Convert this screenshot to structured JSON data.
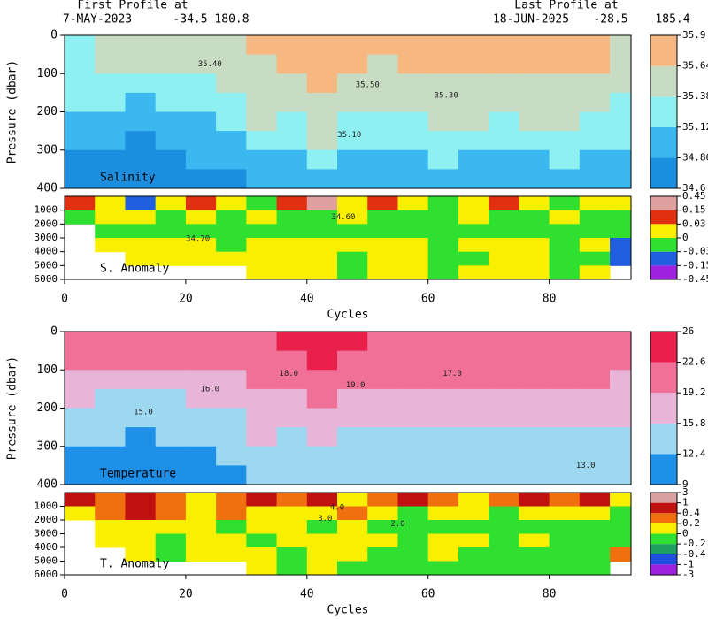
{
  "header": {
    "first_title": "First Profile at",
    "first_date": "7-MAY-2023",
    "first_lat": "-34.5",
    "first_lon": "180.8",
    "last_title": "Last Profile at",
    "last_date": "18-JUN-2025",
    "last_lat": "-28.5",
    "last_lon": "185.4"
  },
  "chart_data": [
    {
      "type": "heatmap",
      "label": "Salinity",
      "ylabel": "Pressure (dbar)",
      "xlim": [
        0,
        93.5
      ],
      "ylim": [
        0,
        400
      ],
      "yticks": [
        0,
        100,
        200,
        300,
        400
      ],
      "colorbar_scale": "linear",
      "colorbar_ticks": [
        34.6,
        34.86,
        35.12,
        35.38,
        35.64,
        35.9
      ],
      "colors": [
        "#1c8ee0",
        "#3cb8f0",
        "#8ef0f0",
        "#c8dcc4",
        "#f6b880"
      ],
      "x": [
        2.5,
        7.5,
        12.5,
        17.5,
        22.5,
        27.5,
        32.5,
        37.5,
        42.5,
        47.5,
        52.5,
        57.5,
        62.5,
        67.5,
        72.5,
        77.5,
        82.5,
        87.5,
        92.5
      ],
      "y": [
        25,
        75,
        125,
        175,
        225,
        275,
        325,
        375
      ],
      "values": [
        [
          35.3,
          35.45,
          35.5,
          35.5,
          35.5,
          35.5,
          35.7,
          35.7,
          35.7,
          35.75,
          35.7,
          35.7,
          35.7,
          35.75,
          35.7,
          35.75,
          35.75,
          35.7,
          35.6
        ],
        [
          35.3,
          35.4,
          35.4,
          35.45,
          35.45,
          35.45,
          35.6,
          35.65,
          35.7,
          35.7,
          35.6,
          35.65,
          35.65,
          35.7,
          35.7,
          35.7,
          35.7,
          35.65,
          35.5
        ],
        [
          35.25,
          35.3,
          35.2,
          35.3,
          35.35,
          35.4,
          35.5,
          35.55,
          35.65,
          35.55,
          35.5,
          35.55,
          35.6,
          35.6,
          35.55,
          35.6,
          35.6,
          35.55,
          35.4
        ],
        [
          35.15,
          35.15,
          35.1,
          35.15,
          35.2,
          35.3,
          35.45,
          35.45,
          35.6,
          35.45,
          35.4,
          35.45,
          35.5,
          35.5,
          35.45,
          35.5,
          35.5,
          35.45,
          35.35
        ],
        [
          35.05,
          35.0,
          34.95,
          35.0,
          35.1,
          35.2,
          35.4,
          35.35,
          35.5,
          35.35,
          35.3,
          35.35,
          35.4,
          35.4,
          35.35,
          35.4,
          35.4,
          35.35,
          35.3
        ],
        [
          34.95,
          34.9,
          34.85,
          34.9,
          35.0,
          35.05,
          35.25,
          35.2,
          35.4,
          35.2,
          35.2,
          35.2,
          35.3,
          35.25,
          35.2,
          35.25,
          35.3,
          35.2,
          35.2
        ],
        [
          34.85,
          34.8,
          34.75,
          34.8,
          34.9,
          34.95,
          35.1,
          35.05,
          35.25,
          35.05,
          35.05,
          35.1,
          35.15,
          35.1,
          35.05,
          35.1,
          35.15,
          35.1,
          35.1
        ],
        [
          34.75,
          34.7,
          34.7,
          34.72,
          34.8,
          34.85,
          34.95,
          34.95,
          35.1,
          34.95,
          34.95,
          35.0,
          35.05,
          35.0,
          34.95,
          35.0,
          35.05,
          35.0,
          35.0
        ]
      ],
      "contour_labels": [
        {
          "text": "35.40",
          "x": 24,
          "y": 75
        },
        {
          "text": "35.50",
          "x": 50,
          "y": 130
        },
        {
          "text": "35.30",
          "x": 63,
          "y": 157
        },
        {
          "text": "35.10",
          "x": 47,
          "y": 260
        }
      ]
    },
    {
      "type": "heatmap",
      "label": "S. Anomaly",
      "xlabel": "Cycles",
      "xlim": [
        0,
        93.5
      ],
      "xticks": [
        0,
        20,
        40,
        60,
        80
      ],
      "ylim": [
        0,
        6000
      ],
      "yticks": [
        1000,
        2000,
        3000,
        4000,
        5000,
        6000
      ],
      "colorbar_scale": "index",
      "colorbar_ticks": [
        -0.45,
        -0.15,
        -0.03,
        0,
        0.03,
        0.15,
        0.45
      ],
      "colors": [
        "#a020e0",
        "#2060e0",
        "#30e030",
        "#f8f000",
        "#e03010",
        "#e0a0a0"
      ],
      "x": [
        2.5,
        7.5,
        12.5,
        17.5,
        22.5,
        27.5,
        32.5,
        37.5,
        42.5,
        47.5,
        52.5,
        57.5,
        62.5,
        67.5,
        72.5,
        77.5,
        82.5,
        87.5,
        92.5
      ],
      "y": [
        500,
        1500,
        2500,
        3500,
        4500,
        5500
      ],
      "values": [
        [
          0.05,
          0.02,
          -0.05,
          0.02,
          0.1,
          0.02,
          -0.01,
          0.1,
          0.2,
          0.02,
          0.05,
          0.02,
          -0.01,
          0.02,
          0.05,
          0.02,
          -0.01,
          0.02,
          0.02
        ],
        [
          -0.01,
          0.02,
          0.02,
          -0.01,
          0.02,
          -0.01,
          0.02,
          -0.01,
          -0.01,
          0.02,
          -0.01,
          -0.01,
          -0.01,
          0.02,
          -0.01,
          -0.01,
          0.02,
          -0.01,
          -0.01
        ],
        [
          null,
          -0.01,
          -0.01,
          -0.01,
          -0.01,
          -0.01,
          -0.01,
          -0.01,
          -0.01,
          -0.01,
          -0.01,
          -0.01,
          -0.01,
          -0.01,
          -0.01,
          -0.01,
          -0.01,
          -0.01,
          -0.01
        ],
        [
          null,
          0.02,
          0.02,
          0.02,
          0.02,
          -0.01,
          0.02,
          0.02,
          0.02,
          0.02,
          0.02,
          0.02,
          -0.01,
          0.02,
          0.02,
          0.02,
          -0.01,
          0.02,
          -0.1
        ],
        [
          null,
          null,
          0.02,
          0.02,
          0.02,
          0.02,
          0.02,
          0.02,
          0.02,
          -0.01,
          0.02,
          0.02,
          -0.01,
          -0.01,
          0.02,
          0.02,
          -0.01,
          -0.01,
          -0.1
        ],
        [
          null,
          null,
          null,
          null,
          null,
          null,
          0.02,
          0.02,
          0.02,
          -0.01,
          0.02,
          0.02,
          -0.01,
          0.02,
          0.02,
          0.02,
          -0.01,
          0.02,
          null
        ]
      ],
      "contour_labels": [
        {
          "text": "34.60",
          "x": 46,
          "y": 1500
        },
        {
          "text": "34.70",
          "x": 22,
          "y": 3050
        }
      ]
    },
    {
      "type": "heatmap",
      "label": "Temperature",
      "ylabel": "Pressure (dbar)",
      "xlim": [
        0,
        93.5
      ],
      "ylim": [
        0,
        400
      ],
      "yticks": [
        0,
        100,
        200,
        300,
        400
      ],
      "colorbar_scale": "linear",
      "colorbar_ticks": [
        9,
        12.4,
        15.8,
        19.2,
        22.6,
        26
      ],
      "colors": [
        "#1e90e8",
        "#9cd8f0",
        "#e8b4d8",
        "#f07098",
        "#e8204a"
      ],
      "x": [
        2.5,
        7.5,
        12.5,
        17.5,
        22.5,
        27.5,
        32.5,
        37.5,
        42.5,
        47.5,
        52.5,
        57.5,
        62.5,
        67.5,
        72.5,
        77.5,
        82.5,
        87.5,
        92.5
      ],
      "y": [
        25,
        75,
        125,
        175,
        225,
        275,
        325,
        375
      ],
      "values": [
        [
          20,
          20,
          20,
          20.5,
          20.5,
          21,
          22,
          23,
          23.5,
          23,
          22.5,
          22.5,
          22,
          22.5,
          22,
          22,
          22.5,
          22,
          21
        ],
        [
          19.5,
          19.5,
          19.5,
          20,
          20,
          20,
          21,
          22,
          23,
          22,
          21.5,
          21.5,
          21,
          21.5,
          21,
          21,
          21.5,
          21,
          20.5
        ],
        [
          17.5,
          17.5,
          17,
          17.5,
          18,
          18.5,
          19.5,
          20,
          21,
          20,
          19.5,
          19.5,
          19.5,
          19.5,
          19.5,
          19.5,
          19.5,
          19.5,
          18.5
        ],
        [
          16,
          15.5,
          15,
          15.5,
          16,
          17,
          18.5,
          18.5,
          19.5,
          18.5,
          18,
          18,
          18,
          18.5,
          18,
          18,
          18.5,
          18,
          17
        ],
        [
          14.5,
          14,
          13.5,
          14,
          14.5,
          15.5,
          17,
          17,
          18.5,
          17,
          16.5,
          16.5,
          17,
          17,
          16.5,
          16.5,
          17,
          16.5,
          16
        ],
        [
          13,
          12.5,
          12,
          12.5,
          13,
          14,
          16,
          15.5,
          17,
          15.5,
          15,
          15,
          15.5,
          15.5,
          15,
          15,
          15.5,
          15,
          15
        ],
        [
          12,
          11.5,
          11,
          11.5,
          12,
          13,
          14.5,
          14,
          15.5,
          14,
          13.5,
          14,
          14.5,
          14,
          14,
          14,
          14.5,
          14,
          14
        ],
        [
          11,
          10.5,
          10,
          10.5,
          11,
          12,
          13,
          12.5,
          14,
          12.5,
          12.5,
          13,
          13.5,
          13,
          12.5,
          13,
          13.5,
          13,
          13
        ]
      ],
      "contour_labels": [
        {
          "text": "16.0",
          "x": 24,
          "y": 150
        },
        {
          "text": "15.0",
          "x": 13,
          "y": 210
        },
        {
          "text": "18.0",
          "x": 37,
          "y": 110
        },
        {
          "text": "19.0",
          "x": 48,
          "y": 140
        },
        {
          "text": "17.0",
          "x": 64,
          "y": 110
        },
        {
          "text": "13.0",
          "x": 86,
          "y": 350
        }
      ]
    },
    {
      "type": "heatmap",
      "label": "T. Anomaly",
      "xlabel": "Cycles",
      "xlim": [
        0,
        93.5
      ],
      "xticks": [
        0,
        20,
        40,
        60,
        80
      ],
      "ylim": [
        0,
        6000
      ],
      "yticks": [
        1000,
        2000,
        3000,
        4000,
        5000,
        6000
      ],
      "colorbar_scale": "index",
      "colorbar_ticks": [
        -3,
        -1,
        -0.4,
        -0.2,
        0,
        0.2,
        0.4,
        1,
        3
      ],
      "colors": [
        "#a020e0",
        "#2050e0",
        "#20a060",
        "#30e030",
        "#f8f000",
        "#f07010",
        "#c01010",
        "#d8a0a0"
      ],
      "x": [
        2.5,
        7.5,
        12.5,
        17.5,
        22.5,
        27.5,
        32.5,
        37.5,
        42.5,
        47.5,
        52.5,
        57.5,
        62.5,
        67.5,
        72.5,
        77.5,
        82.5,
        87.5,
        92.5
      ],
      "y": [
        500,
        1500,
        2500,
        3500,
        4500,
        5500
      ],
      "values": [
        [
          0.5,
          0.3,
          0.5,
          0.3,
          0.1,
          0.3,
          0.5,
          0.3,
          0.5,
          0.1,
          0.3,
          0.5,
          0.3,
          0.1,
          0.3,
          0.5,
          0.3,
          0.5,
          0.1
        ],
        [
          0.1,
          0.3,
          0.5,
          0.3,
          0.1,
          0.3,
          0.1,
          0.1,
          0.1,
          0.3,
          0.1,
          -0.1,
          0.1,
          0.1,
          -0.1,
          0.1,
          0.1,
          0.1,
          -0.1
        ],
        [
          null,
          0.1,
          0.1,
          0.1,
          0.1,
          -0.1,
          0.1,
          0.1,
          -0.1,
          0.1,
          -0.1,
          -0.1,
          -0.1,
          -0.1,
          -0.1,
          -0.1,
          -0.1,
          -0.1,
          -0.1
        ],
        [
          null,
          0.1,
          0.1,
          -0.1,
          0.1,
          0.1,
          -0.1,
          0.1,
          0.1,
          0.1,
          0.1,
          -0.1,
          0.1,
          0.1,
          -0.1,
          0.1,
          -0.1,
          -0.1,
          -0.1
        ],
        [
          null,
          null,
          0.1,
          -0.1,
          0.1,
          0.1,
          0.1,
          -0.1,
          0.1,
          0.1,
          -0.1,
          -0.1,
          0.1,
          -0.1,
          -0.1,
          -0.1,
          -0.1,
          -0.1,
          0.3
        ],
        [
          null,
          null,
          null,
          null,
          null,
          null,
          0.1,
          -0.1,
          0.1,
          -0.1,
          -0.1,
          -0.1,
          -0.1,
          -0.1,
          -0.1,
          -0.1,
          -0.1,
          -0.1,
          null
        ]
      ],
      "contour_labels": [
        {
          "text": "4.0",
          "x": 45,
          "y": 1100
        },
        {
          "text": "3.0",
          "x": 43,
          "y": 1900
        },
        {
          "text": "2.0",
          "x": 55,
          "y": 2300
        }
      ]
    }
  ]
}
